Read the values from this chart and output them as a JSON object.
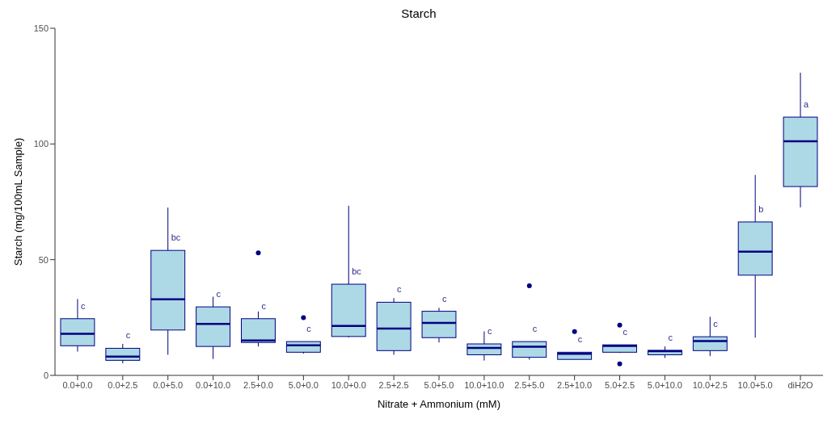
{
  "chart_data": {
    "type": "box",
    "title": "Starch",
    "xlabel": "Nitrate + Ammonium (mM)",
    "ylabel": "Starch (mg/100mL Sample)",
    "categories": [
      "0.0+0.0",
      "0.0+2.5",
      "0.0+5.0",
      "0.0+10.0",
      "2.5+0.0",
      "5.0+0.0",
      "10.0+0.0",
      "2.5+2.5",
      "5.0+5.0",
      "10.0+10.0",
      "2.5+5.0",
      "2.5+10.0",
      "5.0+2.5",
      "5.0+10.0",
      "10.0+2.5",
      "10.0+5.0",
      "diH2O"
    ],
    "boxes": [
      {
        "low": 10.3,
        "q1": 12.8,
        "median": 18,
        "q3": 24.5,
        "high": 33
      },
      {
        "low": 5.2,
        "q1": 6.5,
        "median": 8.1,
        "q3": 11.7,
        "high": 13.6
      },
      {
        "low": 8.9,
        "q1": 19.6,
        "median": 32.9,
        "q3": 54,
        "high": 72.5
      },
      {
        "low": 7.1,
        "q1": 12.5,
        "median": 22.2,
        "q3": 29.6,
        "high": 34
      },
      {
        "low": 12.5,
        "q1": 14.2,
        "median": 15.1,
        "q3": 24.5,
        "high": 27.6,
        "outliers": [
          52.9
        ]
      },
      {
        "low": 9.4,
        "q1": 10,
        "median": 13,
        "q3": 14.6,
        "high": 14.6,
        "outliers": [
          24.9
        ]
      },
      {
        "low": 16.4,
        "q1": 16.8,
        "median": 21.4,
        "q3": 39.4,
        "high": 73.3
      },
      {
        "low": 8.9,
        "q1": 10.7,
        "median": 20.2,
        "q3": 31.6,
        "high": 33.4
      },
      {
        "low": 14.2,
        "q1": 16.3,
        "median": 22.7,
        "q3": 27.7,
        "high": 29.2
      },
      {
        "low": 6.4,
        "q1": 8.9,
        "median": 11.9,
        "q3": 13.6,
        "high": 19
      },
      {
        "low": 6.8,
        "q1": 7.8,
        "median": 12.4,
        "q3": 14.6,
        "high": 14.6,
        "outliers": [
          38.7
        ]
      },
      {
        "low": 6.9,
        "q1": 6.9,
        "median": 9.3,
        "q3": 10,
        "high": 10,
        "outliers": [
          18.9
        ]
      },
      {
        "low": 9.7,
        "q1": 10,
        "median": 12.7,
        "q3": 13.2,
        "high": 13.2,
        "outliers": [
          21.7,
          5
        ]
      },
      {
        "low": 7.5,
        "q1": 8.9,
        "median": 10.5,
        "q3": 10.8,
        "high": 12.5
      },
      {
        "low": 8.3,
        "q1": 10.7,
        "median": 14.8,
        "q3": 16.7,
        "high": 25.3
      },
      {
        "low": 16.3,
        "q1": 43.3,
        "median": 53.5,
        "q3": 66.3,
        "high": 86.6
      },
      {
        "low": 72.6,
        "q1": 81.6,
        "median": 101.2,
        "q3": 111.6,
        "high": 130.8
      }
    ],
    "color": "#add8e6",
    "ylim": [
      0,
      150
    ],
    "yticks": [
      0,
      50,
      100,
      150
    ],
    "annotations": [
      "c",
      "c",
      "bc",
      "c",
      "c",
      "c",
      "bc",
      "c",
      "c",
      "c",
      "c",
      "c",
      "c",
      "c",
      "c",
      "b",
      "a"
    ]
  }
}
